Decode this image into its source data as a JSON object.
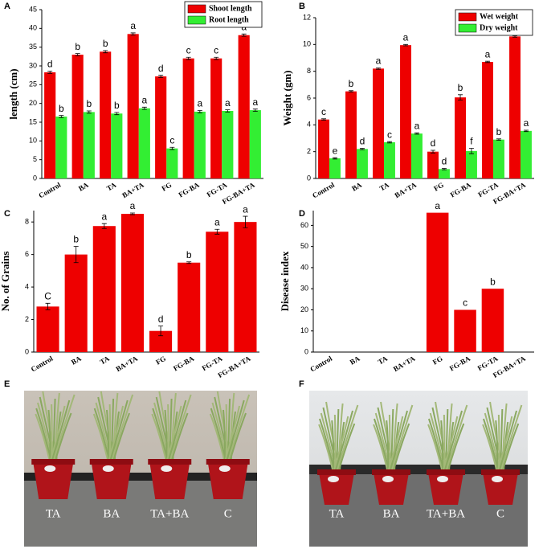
{
  "chart_data": [
    {
      "type": "bar",
      "panel": "A",
      "ylabel": "length (cm)",
      "categories": [
        "Control",
        "BA",
        "TA",
        "BA+TA",
        "FG",
        "FG-BA",
        "FG-TA",
        "FG-BA+TA"
      ],
      "series": [
        {
          "name": "Shoot length",
          "color": "#ee0000",
          "values": [
            28.3,
            33,
            33.8,
            38.5,
            27.2,
            32,
            32,
            38.2
          ],
          "errors": [
            0.3,
            0.3,
            0.3,
            0.3,
            0.3,
            0.3,
            0.3,
            0.3
          ],
          "letters": [
            "d",
            "b",
            "b",
            "a",
            "d",
            "c",
            "c",
            "a"
          ]
        },
        {
          "name": "Root length",
          "color": "#33ee33",
          "values": [
            16.5,
            17.7,
            17.3,
            18.7,
            8,
            17.8,
            18,
            18.2
          ],
          "errors": [
            0.3,
            0.3,
            0.3,
            0.3,
            0.3,
            0.3,
            0.3,
            0.3
          ],
          "letters": [
            "b",
            "b",
            "b",
            "a",
            "c",
            "a",
            "a",
            "a"
          ]
        }
      ],
      "ylim": [
        0,
        45
      ],
      "yticks": [
        0,
        5,
        10,
        15,
        20,
        25,
        30,
        35,
        40,
        45
      ],
      "legend": "top-right"
    },
    {
      "type": "bar",
      "panel": "B",
      "ylabel": "Weight (gm)",
      "categories": [
        "Control",
        "BA",
        "TA",
        "BA+TA",
        "FG",
        "FG-BA",
        "FG-TA",
        "FG-BA+TA"
      ],
      "series": [
        {
          "name": "Wet weight",
          "color": "#ee0000",
          "values": [
            4.4,
            6.5,
            8.2,
            9.95,
            2.0,
            6.05,
            8.7,
            10.6
          ],
          "errors": [
            0.05,
            0.05,
            0.05,
            0.05,
            0.1,
            0.2,
            0.05,
            0.05
          ],
          "letters": [
            "c",
            "b",
            "a",
            "a",
            "d",
            "b",
            "a",
            "a"
          ]
        },
        {
          "name": "Dry weight",
          "color": "#33ee33",
          "values": [
            1.5,
            2.2,
            2.7,
            3.35,
            0.7,
            2.05,
            2.9,
            3.55
          ],
          "errors": [
            0.05,
            0.05,
            0.05,
            0.05,
            0.05,
            0.2,
            0.05,
            0.05
          ],
          "letters": [
            "e",
            "d",
            "c",
            "a",
            "d",
            "f",
            "b",
            "a"
          ]
        }
      ],
      "ylim": [
        0,
        12
      ],
      "yticks": [
        0,
        2,
        4,
        6,
        8,
        10,
        12
      ],
      "legend": "top-right"
    },
    {
      "type": "bar",
      "panel": "C",
      "ylabel": "No. of Grains",
      "categories": [
        "Control",
        "BA",
        "TA",
        "BA+TA",
        "FG",
        "FG-BA",
        "FG-TA",
        "FG-BA+TA"
      ],
      "color": "#ee0000",
      "values": [
        2.8,
        6.0,
        7.75,
        8.5,
        1.3,
        5.5,
        7.4,
        8.0
      ],
      "errors": [
        0.2,
        0.5,
        0.15,
        0.05,
        0.3,
        0.05,
        0.15,
        0.35
      ],
      "letters": [
        "C",
        "b",
        "a",
        "a",
        "d",
        "b",
        "a",
        "a"
      ],
      "ylim": [
        0,
        8.7
      ],
      "yticks": [
        0,
        2,
        4,
        6,
        8
      ]
    },
    {
      "type": "bar",
      "panel": "D",
      "ylabel": "Disease index",
      "categories": [
        "Control",
        "BA",
        "TA",
        "BA+TA",
        "FG",
        "FG-BA",
        "FG-TA",
        "FG-BA+TA"
      ],
      "color": "#ee0000",
      "values": [
        0,
        0,
        0,
        0,
        66,
        20,
        30,
        0
      ],
      "errors": [
        0,
        0,
        0,
        0,
        0,
        0,
        0,
        0
      ],
      "letters": [
        null,
        null,
        null,
        null,
        "a",
        "c",
        "b",
        null
      ],
      "ylim": [
        0,
        67
      ],
      "yticks": [
        0,
        10,
        20,
        30,
        40,
        50,
        60
      ]
    }
  ],
  "photos": [
    {
      "panel": "E",
      "labels": [
        "TA",
        "BA",
        "TA+BA",
        "C"
      ]
    },
    {
      "panel": "F",
      "labels": [
        "TA",
        "BA",
        "TA+BA",
        "C"
      ]
    }
  ]
}
